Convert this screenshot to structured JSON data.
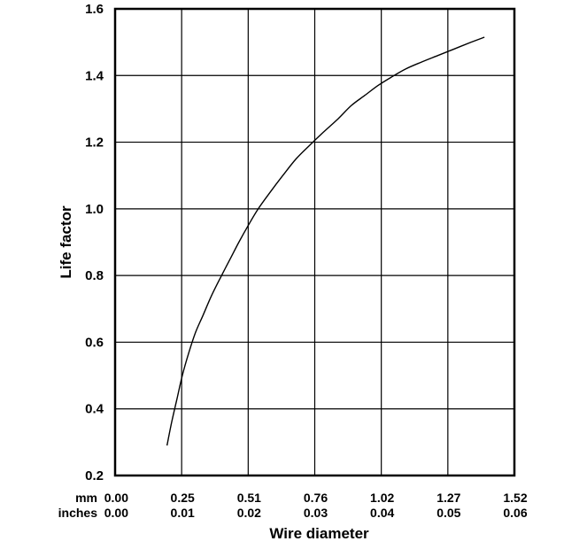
{
  "chart_data": {
    "type": "line",
    "title": "",
    "xlabel": "Wire diameter",
    "ylabel": "Life factor",
    "x_unit_rows": [
      {
        "label": "mm",
        "ticks": [
          "0.00",
          "0.25",
          "0.51",
          "0.76",
          "1.02",
          "1.27",
          "1.52"
        ]
      },
      {
        "label": "inches",
        "ticks": [
          "0.00",
          "0.01",
          "0.02",
          "0.03",
          "0.04",
          "0.05",
          "0.06"
        ]
      }
    ],
    "y_ticks": [
      "0.2",
      "0.4",
      "0.6",
      "0.8",
      "1.0",
      "1.2",
      "1.4",
      "1.6"
    ],
    "xlim": [
      0,
      0.06
    ],
    "ylim": [
      0.2,
      1.6
    ],
    "grid": true,
    "legend": "none",
    "colors": {
      "line": "#000000",
      "grid": "#000000",
      "frame": "#000000"
    },
    "series": [
      {
        "x": [
          0.0078,
          0.0085,
          0.0093,
          0.0101,
          0.0111,
          0.0121,
          0.0132,
          0.0145,
          0.016,
          0.0173,
          0.0186,
          0.02,
          0.0215,
          0.0233,
          0.0252,
          0.0272,
          0.0292,
          0.0313,
          0.0335,
          0.0355,
          0.0375,
          0.0395,
          0.0415,
          0.0437,
          0.046,
          0.0485,
          0.051,
          0.0535,
          0.0555
        ],
        "y": [
          0.29,
          0.36,
          0.43,
          0.5,
          0.57,
          0.63,
          0.68,
          0.74,
          0.8,
          0.85,
          0.9,
          0.95,
          1.0,
          1.05,
          1.1,
          1.15,
          1.19,
          1.23,
          1.27,
          1.31,
          1.34,
          1.37,
          1.395,
          1.42,
          1.44,
          1.46,
          1.48,
          1.5,
          1.515
        ]
      }
    ]
  }
}
